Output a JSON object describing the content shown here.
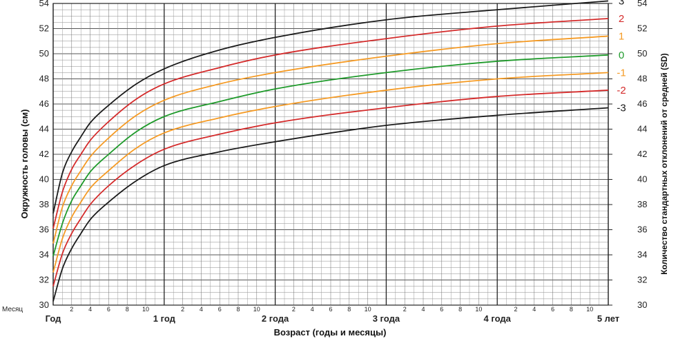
{
  "chart_data": {
    "type": "line",
    "xlabel": "Возраст (годы и месяцы)",
    "ylabel": "Окружность головы (см)",
    "ylabel_right": "Количество стандартных отклонений от средней (SD)",
    "month_marker": "Месяц",
    "xlim": [
      0,
      60
    ],
    "ylim": [
      30,
      54
    ],
    "y_ticks": [
      30,
      32,
      34,
      36,
      38,
      40,
      42,
      44,
      46,
      48,
      50,
      52,
      54
    ],
    "year_labels": [
      {
        "x": 0,
        "label": "Год"
      },
      {
        "x": 12,
        "label": "1 год"
      },
      {
        "x": 24,
        "label": "2 года"
      },
      {
        "x": 36,
        "label": "3 года"
      },
      {
        "x": 48,
        "label": "4 года"
      },
      {
        "x": 60,
        "label": "5 лет"
      }
    ],
    "month_ticks": [
      "2",
      "4",
      "6",
      "8",
      "10"
    ],
    "grid": true,
    "x": [
      0,
      1,
      2,
      3,
      4,
      6,
      9,
      12,
      18,
      24,
      36,
      48,
      60
    ],
    "series": [
      {
        "name": "3",
        "color": "#1a1a1a",
        "values": [
          37.3,
          40.5,
          42.2,
          43.4,
          44.5,
          45.9,
          47.6,
          48.8,
          50.3,
          51.3,
          52.7,
          53.5,
          54.2
        ]
      },
      {
        "name": "2",
        "color": "#d42a2a",
        "values": [
          36.1,
          39.0,
          40.8,
          42.0,
          43.1,
          44.6,
          46.4,
          47.6,
          48.9,
          49.9,
          51.2,
          52.2,
          52.8
        ]
      },
      {
        "name": "1",
        "color": "#f59a23",
        "values": [
          34.9,
          37.8,
          39.5,
          40.7,
          41.8,
          43.3,
          45.1,
          46.3,
          47.6,
          48.5,
          49.8,
          50.8,
          51.4
        ]
      },
      {
        "name": "0",
        "color": "#1e9a2a",
        "values": [
          33.9,
          36.5,
          38.3,
          39.5,
          40.6,
          42.0,
          43.8,
          45.0,
          46.2,
          47.2,
          48.5,
          49.4,
          49.9
        ]
      },
      {
        "name": "-1",
        "color": "#f59a23",
        "values": [
          32.6,
          35.3,
          37.0,
          38.2,
          39.3,
          40.7,
          42.5,
          43.7,
          44.9,
          45.8,
          47.1,
          48.0,
          48.5
        ]
      },
      {
        "name": "-2",
        "color": "#d42a2a",
        "values": [
          31.5,
          34.1,
          35.7,
          36.9,
          38.0,
          39.5,
          41.2,
          42.4,
          43.6,
          44.5,
          45.7,
          46.6,
          47.1
        ]
      },
      {
        "name": "-3",
        "color": "#1a1a1a",
        "values": [
          30.3,
          32.9,
          34.5,
          35.7,
          36.8,
          38.2,
          39.9,
          41.1,
          42.2,
          43.0,
          44.3,
          45.1,
          45.7
        ]
      }
    ]
  }
}
